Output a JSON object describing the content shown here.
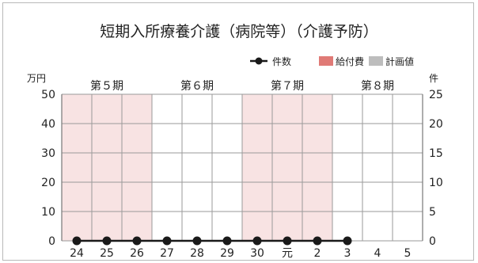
{
  "chart_data": {
    "type": "bar+line",
    "title": "短期入所療養介護（病院等）（介護予防）",
    "categories": [
      "24",
      "25",
      "26",
      "27",
      "28",
      "29",
      "30",
      "元",
      "2",
      "3",
      "4",
      "5"
    ],
    "periods": [
      {
        "label": "第５期",
        "start": 0,
        "end": 3,
        "shaded": true
      },
      {
        "label": "第６期",
        "start": 3,
        "end": 6,
        "shaded": false
      },
      {
        "label": "第７期",
        "start": 6,
        "end": 9,
        "shaded": true
      },
      {
        "label": "第８期",
        "start": 9,
        "end": 12,
        "shaded": false
      }
    ],
    "left_axis": {
      "unit": "万円",
      "min": 0,
      "max": 50,
      "ticks": [
        0,
        10,
        20,
        30,
        40,
        50
      ]
    },
    "right_axis": {
      "unit": "件",
      "min": 0,
      "max": 25,
      "ticks": [
        0,
        5,
        10,
        15,
        20,
        25
      ]
    },
    "legend": [
      {
        "name": "件数",
        "kind": "line",
        "color": "#1a1a1a"
      },
      {
        "name": "給付費",
        "kind": "bar",
        "color": "#e07a76"
      },
      {
        "name": "計画値",
        "kind": "bar",
        "color": "#bdbdbd"
      }
    ],
    "series": [
      {
        "name": "件数",
        "type": "line",
        "axis": "right",
        "values": [
          0,
          0,
          0,
          0,
          0,
          0,
          0,
          0,
          0,
          0,
          null,
          null
        ]
      },
      {
        "name": "給付費",
        "type": "bar",
        "axis": "left",
        "values": [
          0,
          0,
          0,
          0,
          0,
          0,
          0,
          0,
          0,
          0,
          null,
          null
        ]
      },
      {
        "name": "計画値",
        "type": "bar",
        "axis": "left",
        "values": [
          null,
          null,
          null,
          null,
          null,
          null,
          null,
          null,
          null,
          null,
          null,
          null
        ]
      }
    ],
    "grid": true,
    "legend_position": "top-right",
    "colors": {
      "shade": "#f8e3e3",
      "grid": "#9a9a9a",
      "axis": "#777777"
    }
  }
}
